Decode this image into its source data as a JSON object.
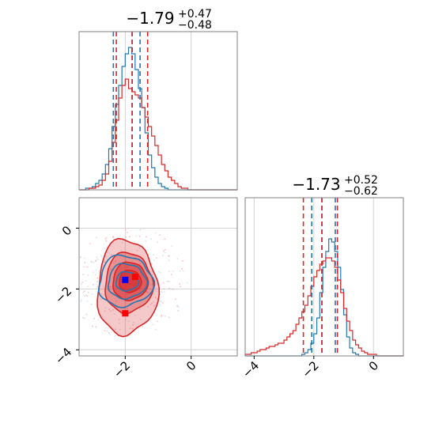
{
  "chart_data": {
    "type": "corner",
    "colors": {
      "blue": "#1f77b4",
      "red": "#d62728",
      "grid": "#d3d3d3",
      "frame": "#808080"
    },
    "panels": [
      {
        "id": "hist-param1",
        "type": "histogram",
        "title": {
          "value": "−1.79",
          "plus": "+0.47",
          "minus": "−0.48"
        },
        "xlim": [
          -3.4,
          1.4
        ],
        "ylim": [
          0,
          1.0
        ],
        "grid_x": [
          -2,
          0
        ],
        "quantiles": {
          "blue": [
            -2.36,
            -1.79,
            -1.55
          ],
          "red": [
            -2.27,
            -1.79,
            -1.32
          ]
        },
        "series": [
          {
            "name": "",
            "color": "#1f77b4",
            "x_start": -3.4,
            "bin": 0.1,
            "values": [
              0.0,
              0.0,
              0.01,
              0.01,
              0.02,
              0.04,
              0.06,
              0.1,
              0.16,
              0.26,
              0.4,
              0.54,
              0.66,
              0.78,
              0.86,
              0.9,
              0.86,
              0.76,
              0.64,
              0.52,
              0.36,
              0.22,
              0.14,
              0.08,
              0.04,
              0.02,
              0.01,
              0.0,
              0.0,
              0.0,
              0.0,
              0.0,
              0.0,
              0.0,
              0.0,
              0.0,
              0.0,
              0.0,
              0.0,
              0.0,
              0.0,
              0.0,
              0.0,
              0.0,
              0.0,
              0.0,
              0.0,
              0.0
            ]
          },
          {
            "name": "",
            "color": "#d62728",
            "x_start": -3.4,
            "bin": 0.1,
            "values": [
              0.0,
              0.0,
              0.0,
              0.01,
              0.01,
              0.02,
              0.03,
              0.06,
              0.1,
              0.18,
              0.3,
              0.44,
              0.58,
              0.66,
              0.7,
              0.64,
              0.62,
              0.6,
              0.58,
              0.52,
              0.46,
              0.4,
              0.34,
              0.28,
              0.22,
              0.16,
              0.12,
              0.08,
              0.06,
              0.04,
              0.02,
              0.01,
              0.01,
              0.0,
              0.0,
              0.0,
              0.0,
              0.0,
              0.0,
              0.0,
              0.0,
              0.0,
              0.0,
              0.0,
              0.0,
              0.0,
              0.0,
              0.0
            ]
          }
        ]
      },
      {
        "id": "contour-2d",
        "type": "contour",
        "xlim": [
          -3.4,
          1.4
        ],
        "ylim": [
          -4.2,
          1.0
        ],
        "xticks": [
          -2,
          0
        ],
        "yticks": [
          0,
          -2,
          -4
        ],
        "xtick_labels": [
          "−2",
          "0"
        ],
        "ytick_labels": [
          "0",
          "−2",
          "−4"
        ],
        "red_markers": [
          [
            -1.7,
            -1.6
          ],
          [
            -2.0,
            -2.8
          ]
        ],
        "blue_marker": [
          -2.0,
          -1.7
        ]
      },
      {
        "id": "hist-param2",
        "type": "histogram",
        "title": {
          "value": "−1.73",
          "plus": "+0.52",
          "minus": "−0.62"
        },
        "xlim": [
          -4.3,
          1.0
        ],
        "ylim": [
          0,
          1.0
        ],
        "grid_x": [
          -4,
          -2,
          0
        ],
        "xticks": [
          -4,
          -2,
          0
        ],
        "xtick_labels": [
          "−4",
          "−2",
          "0"
        ],
        "quantiles": {
          "blue": [
            -2.07,
            -1.73,
            -1.28
          ],
          "red": [
            -2.35,
            -1.73,
            -1.21
          ]
        },
        "series": [
          {
            "name": "",
            "color": "#1f77b4",
            "x_start": -4.3,
            "bin": 0.1,
            "values": [
              0,
              0,
              0,
              0,
              0,
              0,
              0,
              0,
              0,
              0,
              0,
              0,
              0,
              0,
              0,
              0,
              0,
              0,
              0,
              0.01,
              0.02,
              0.04,
              0.08,
              0.14,
              0.24,
              0.4,
              0.56,
              0.66,
              0.74,
              0.72,
              0.66,
              0.56,
              0.42,
              0.26,
              0.12,
              0.05,
              0.02,
              0.01,
              0,
              0,
              0,
              0,
              0,
              0,
              0,
              0,
              0,
              0,
              0,
              0,
              0,
              0,
              0
            ]
          },
          {
            "name": "",
            "color": "#d62728",
            "x_start": -4.3,
            "bin": 0.1,
            "values": [
              0.01,
              0.01,
              0.02,
              0.02,
              0.03,
              0.04,
              0.04,
              0.05,
              0.06,
              0.06,
              0.07,
              0.08,
              0.08,
              0.1,
              0.12,
              0.14,
              0.16,
              0.2,
              0.24,
              0.28,
              0.32,
              0.38,
              0.44,
              0.5,
              0.54,
              0.58,
              0.6,
              0.62,
              0.62,
              0.6,
              0.56,
              0.48,
              0.4,
              0.3,
              0.22,
              0.16,
              0.1,
              0.07,
              0.05,
              0.03,
              0.02,
              0.01,
              0.01,
              0.01,
              0,
              0,
              0,
              0,
              0,
              0,
              0,
              0,
              0
            ]
          }
        ]
      }
    ]
  }
}
